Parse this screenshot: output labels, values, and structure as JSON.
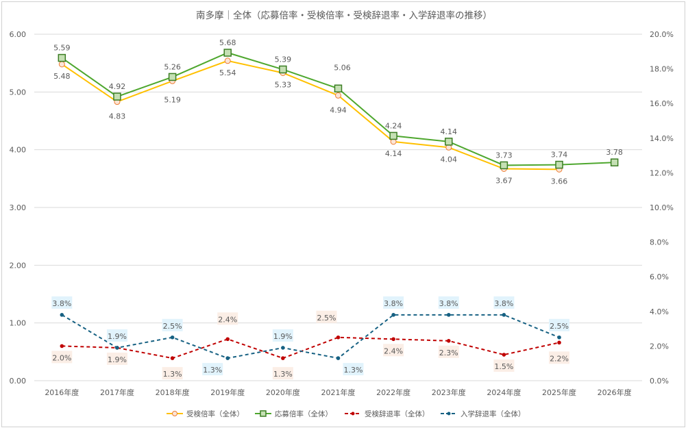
{
  "chart_data": {
    "type": "line",
    "title": "南多摩｜全体（応募倍率・受検倍率・受検辞退率・入学辞退率の推移）",
    "categories": [
      "2016年度",
      "2017年度",
      "2018年度",
      "2019年度",
      "2020年度",
      "2021年度",
      "2022年度",
      "2023年度",
      "2024年度",
      "2025年度",
      "2026年度"
    ],
    "y_left": {
      "range": [
        0,
        6
      ],
      "ticks": [
        "0.00",
        "1.00",
        "2.00",
        "3.00",
        "4.00",
        "5.00",
        "6.00"
      ]
    },
    "y_right": {
      "range": [
        0,
        20
      ],
      "ticks": [
        "0.0%",
        "2.0%",
        "4.0%",
        "6.0%",
        "8.0%",
        "10.0%",
        "12.0%",
        "14.0%",
        "16.0%",
        "18.0%",
        "20.0%"
      ]
    },
    "grid": true,
    "legend_position": "bottom",
    "series": [
      {
        "name": "受検倍率（全体）",
        "axis": "left",
        "color": "#FFC000",
        "marker_fill": "#FBE5D6",
        "marker_stroke": "#ED7D31",
        "marker": "circle",
        "values": [
          5.48,
          4.83,
          5.19,
          5.54,
          5.33,
          4.94,
          4.14,
          4.04,
          3.67,
          3.66,
          null
        ],
        "labels": [
          "5.48",
          "4.83",
          "5.19",
          "5.54",
          "5.33",
          "4.94",
          "4.14",
          "4.04",
          "3.67",
          "3.66",
          null
        ]
      },
      {
        "name": "応募倍率（全体）",
        "axis": "left",
        "color": "#4EA72E",
        "marker_fill": "#C5E0B4",
        "marker_stroke": "#3B7D23",
        "marker": "square",
        "values": [
          5.59,
          4.92,
          5.26,
          5.68,
          5.39,
          5.06,
          4.24,
          4.14,
          3.73,
          3.74,
          3.78
        ],
        "labels": [
          "5.59",
          "4.92",
          "5.26",
          "5.68",
          "5.39",
          "5.06",
          "4.24",
          "4.14",
          "3.73",
          "3.74",
          "3.78"
        ]
      },
      {
        "name": "受検辞退率（全体）",
        "axis": "right",
        "color": "#C00000",
        "label_bg": "#FBEEE6",
        "marker": "dot",
        "values": [
          2.0,
          1.9,
          1.3,
          2.4,
          1.3,
          2.5,
          2.4,
          2.3,
          1.5,
          2.2,
          null
        ],
        "labels": [
          "2.0%",
          "1.9%",
          "1.3%",
          "2.4%",
          "1.3%",
          "2.5%",
          "2.4%",
          "2.3%",
          "1.5%",
          "2.2%",
          null
        ]
      },
      {
        "name": "入学辞退率（全体）",
        "axis": "right",
        "color": "#156082",
        "label_bg": "#E1F3FC",
        "marker": "dot",
        "values": [
          3.8,
          1.9,
          2.5,
          1.3,
          1.9,
          1.3,
          3.8,
          3.8,
          3.8,
          2.5,
          null
        ],
        "labels": [
          "3.8%",
          "1.9%",
          "2.5%",
          "1.3%",
          "1.9%",
          "1.3%",
          "3.8%",
          "3.8%",
          "3.8%",
          "2.5%",
          null
        ]
      }
    ]
  }
}
